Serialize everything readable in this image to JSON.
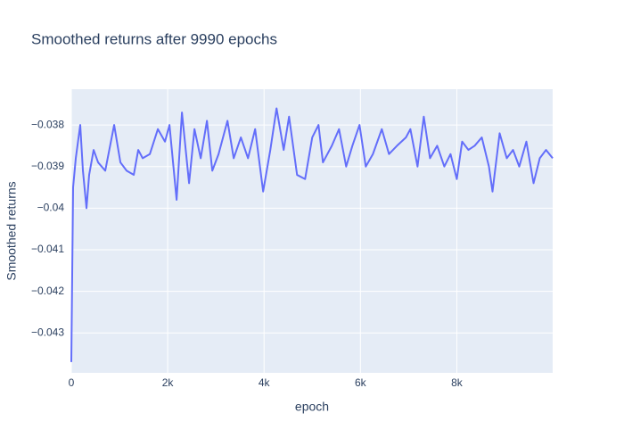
{
  "chart_data": {
    "type": "line",
    "title": "Smoothed returns after 9990 epochs",
    "xlabel": "epoch",
    "ylabel": "Smoothed returns",
    "x": [
      0,
      37,
      93,
      185,
      241,
      315,
      370,
      463,
      556,
      704,
      889,
      1019,
      1148,
      1296,
      1389,
      1481,
      1630,
      1796,
      1944,
      2037,
      2185,
      2296,
      2444,
      2556,
      2685,
      2815,
      2926,
      3056,
      3241,
      3370,
      3519,
      3667,
      3815,
      3981,
      4130,
      4259,
      4407,
      4519,
      4685,
      4852,
      5000,
      5130,
      5222,
      5407,
      5556,
      5704,
      5833,
      5981,
      6111,
      6259,
      6444,
      6593,
      6759,
      6944,
      7037,
      7185,
      7315,
      7444,
      7593,
      7741,
      7870,
      8000,
      8111,
      8241,
      8370,
      8519,
      8667,
      8741,
      8889,
      9037,
      9167,
      9296,
      9444,
      9593,
      9722,
      9852,
      9990
    ],
    "series": [
      {
        "name": "Smoothed returns",
        "color": "#636efa",
        "values": [
          -0.0437,
          -0.0395,
          -0.0388,
          -0.038,
          -0.0391,
          -0.04,
          -0.0392,
          -0.0386,
          -0.0389,
          -0.0391,
          -0.038,
          -0.0389,
          -0.0391,
          -0.0392,
          -0.0386,
          -0.0388,
          -0.0387,
          -0.0381,
          -0.0384,
          -0.038,
          -0.0398,
          -0.0377,
          -0.0394,
          -0.0381,
          -0.0388,
          -0.0379,
          -0.0391,
          -0.0387,
          -0.0379,
          -0.0388,
          -0.0383,
          -0.0388,
          -0.0381,
          -0.0396,
          -0.0386,
          -0.0376,
          -0.0386,
          -0.0378,
          -0.0392,
          -0.0393,
          -0.0383,
          -0.038,
          -0.0389,
          -0.0385,
          -0.0381,
          -0.039,
          -0.0385,
          -0.038,
          -0.039,
          -0.0387,
          -0.0381,
          -0.0387,
          -0.0385,
          -0.0383,
          -0.0381,
          -0.039,
          -0.0378,
          -0.0388,
          -0.0385,
          -0.039,
          -0.0387,
          -0.0393,
          -0.0384,
          -0.0386,
          -0.0385,
          -0.0383,
          -0.039,
          -0.0396,
          -0.0382,
          -0.0388,
          -0.0386,
          -0.039,
          -0.0384,
          -0.0394,
          -0.0388,
          -0.0386,
          -0.0388
        ]
      }
    ],
    "xlim": [
      0,
      9990
    ],
    "ylim": [
      -0.04396,
      -0.03714
    ],
    "xticks": [
      0,
      {
        "value": 2000,
        "label": "2k"
      },
      {
        "value": 4000,
        "label": "4k"
      },
      {
        "value": 6000,
        "label": "6k"
      },
      {
        "value": 8000,
        "label": "8k"
      }
    ],
    "yticks": [
      {
        "value": -0.043,
        "label": "−0.043"
      },
      {
        "value": -0.042,
        "label": "−0.042"
      },
      {
        "value": -0.041,
        "label": "−0.041"
      },
      {
        "value": -0.04,
        "label": "−0.04"
      },
      {
        "value": -0.039,
        "label": "−0.039"
      },
      {
        "value": -0.038,
        "label": "−0.038"
      }
    ],
    "grid": true
  }
}
